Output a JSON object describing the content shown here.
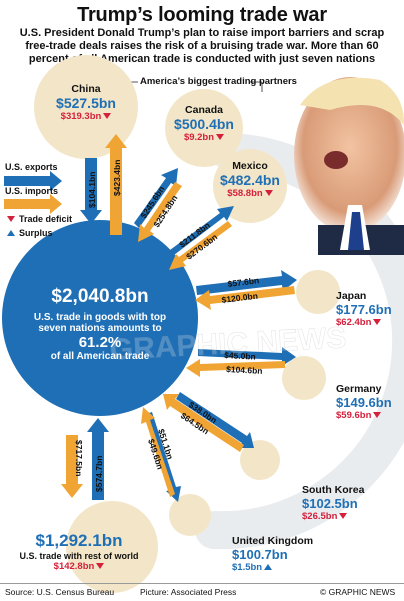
{
  "header": {
    "title": "Trump’s looming trade war",
    "subtitle": "U.S. President Donald Trump’s plan to raise import barriers and scrap free-trade deals raises the risk of a bruising trade war. More than 60 percent of all American trade is conducted with just seven nations"
  },
  "partners_label": "America’s biggest trading partners",
  "legend": {
    "exports": "U.S. exports",
    "imports": "U.S. imports",
    "deficit": "Trade deficit",
    "surplus": "Surplus"
  },
  "center": {
    "value": "$2,040.8bn",
    "line1": "U.S. trade in goods with top",
    "line2": "seven nations amounts to",
    "pct": "61.2%",
    "line3": "of all American trade"
  },
  "rest": {
    "value": "$1,292.1bn",
    "label": "U.S. trade with rest of world",
    "balance": "$142.8bn",
    "export": "$574.7bn",
    "import": "$717.5bn"
  },
  "partners": [
    {
      "name": "China",
      "total": "$527.5bn",
      "balance": "$319.3bn",
      "balance_type": "deficit",
      "export": "$104.1bn",
      "import": "$423.4bn"
    },
    {
      "name": "Canada",
      "total": "$500.4bn",
      "balance": "$9.2bn",
      "balance_type": "deficit",
      "export": "$245.6bn",
      "import": "$254.8bn"
    },
    {
      "name": "Mexico",
      "total": "$482.4bn",
      "balance": "$58.8bn",
      "balance_type": "deficit",
      "export": "$211.8bn",
      "import": "$270.6bn"
    },
    {
      "name": "Japan",
      "total": "$177.6bn",
      "balance": "$62.4bn",
      "balance_type": "deficit",
      "export": "$57.6bn",
      "import": "$120.0bn"
    },
    {
      "name": "Germany",
      "total": "$149.6bn",
      "balance": "$59.6bn",
      "balance_type": "deficit",
      "export": "$45.0bn",
      "import": "$104.6bn"
    },
    {
      "name": "South Korea",
      "total": "$102.5bn",
      "balance": "$26.5bn",
      "balance_type": "deficit",
      "export": "$38.0bn",
      "import": "$64.5bn"
    },
    {
      "name": "United Kingdom",
      "total": "$100.7bn",
      "balance": "$1.5bn",
      "balance_type": "surplus",
      "export": "$51.1bn",
      "import": "$49.6bn"
    }
  ],
  "watermark": "GRAPHIC NEWS",
  "footer": {
    "source": "Source: U.S. Census Bureau",
    "picture": "Picture: Associated Press",
    "credit": "© GRAPHIC NEWS"
  },
  "colors": {
    "export_blue": "#1f6fb6",
    "import_orange": "#f0a433",
    "deficit_red": "#d4203b",
    "partner_circle": "#f3e6c8",
    "arc": "#eef0f3"
  }
}
